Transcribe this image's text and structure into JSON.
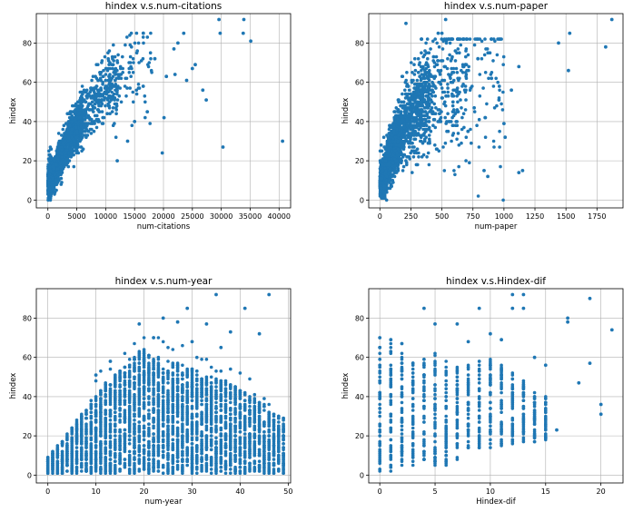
{
  "chart_data": [
    {
      "type": "scatter",
      "title": "hindex v.s.num-citations",
      "xlabel": "num-citations",
      "ylabel": "hindex",
      "xlim": [
        -2000,
        42000
      ],
      "ylim": [
        -4,
        95
      ],
      "xticks": [
        0,
        5000,
        10000,
        15000,
        20000,
        25000,
        30000,
        35000,
        40000
      ],
      "yticks": [
        0,
        20,
        40,
        60,
        80
      ],
      "grid": true,
      "color": "#1f77b4",
      "points": [
        [
          29600,
          92
        ],
        [
          33900,
          92
        ],
        [
          29800,
          85
        ],
        [
          33800,
          85
        ],
        [
          35100,
          81
        ],
        [
          25500,
          69
        ],
        [
          25000,
          67
        ],
        [
          22500,
          80
        ],
        [
          23500,
          85
        ],
        [
          26800,
          56
        ],
        [
          27400,
          51
        ],
        [
          30300,
          27
        ],
        [
          40600,
          30
        ],
        [
          24000,
          61
        ],
        [
          20500,
          63
        ],
        [
          19800,
          24
        ],
        [
          18500,
          72
        ],
        [
          22000,
          64
        ],
        [
          17200,
          45
        ],
        [
          16500,
          58
        ],
        [
          12000,
          20
        ],
        [
          15000,
          40
        ],
        [
          13800,
          30
        ],
        [
          20100,
          42
        ],
        [
          21800,
          77
        ]
      ]
    },
    {
      "type": "scatter",
      "title": "hindex v.s.num-paper",
      "xlabel": "num-paper",
      "ylabel": "hindex",
      "xlim": [
        -90,
        1960
      ],
      "ylim": [
        -4,
        95
      ],
      "xticks": [
        0,
        250,
        500,
        750,
        1000,
        1250,
        1500,
        1750
      ],
      "yticks": [
        0,
        20,
        40,
        60,
        80
      ],
      "grid": true,
      "color": "#1f77b4",
      "points": [
        [
          530,
          92
        ],
        [
          1870,
          92
        ],
        [
          210,
          90
        ],
        [
          500,
          85
        ],
        [
          470,
          85
        ],
        [
          1440,
          80
        ],
        [
          1530,
          85
        ],
        [
          1820,
          78
        ],
        [
          1520,
          66
        ],
        [
          1120,
          68
        ],
        [
          1010,
          32
        ],
        [
          1120,
          14
        ],
        [
          1150,
          15
        ],
        [
          840,
          15
        ],
        [
          870,
          12
        ],
        [
          900,
          62
        ],
        [
          1060,
          56
        ],
        [
          960,
          51
        ],
        [
          790,
          72
        ],
        [
          690,
          69
        ],
        [
          760,
          47
        ],
        [
          620,
          55
        ],
        [
          850,
          42
        ],
        [
          710,
          35
        ],
        [
          1000,
          39
        ]
      ]
    },
    {
      "type": "scatter",
      "title": "hindex v.s.num-year",
      "xlabel": "num-year",
      "ylabel": "hindex",
      "xlim": [
        -2.4,
        50.5
      ],
      "ylim": [
        -4,
        95
      ],
      "xticks": [
        0,
        10,
        20,
        30,
        40,
        50
      ],
      "yticks": [
        0,
        20,
        40,
        60,
        80
      ],
      "grid": true,
      "color": "#1f77b4",
      "points": [
        [
          35,
          92
        ],
        [
          46,
          92
        ],
        [
          29,
          85
        ],
        [
          41,
          85
        ],
        [
          24,
          80
        ],
        [
          19,
          77
        ],
        [
          27,
          78
        ],
        [
          33,
          77
        ],
        [
          38,
          73
        ],
        [
          44,
          72
        ],
        [
          10,
          51
        ],
        [
          13,
          58
        ],
        [
          22,
          70
        ],
        [
          30,
          68
        ],
        [
          36,
          65
        ]
      ]
    },
    {
      "type": "scatter",
      "title": "hindex v.s.Hindex-dif",
      "xlabel": "Hindex-dif",
      "ylabel": "hindex",
      "xlim": [
        -1,
        22
      ],
      "ylim": [
        -4,
        95
      ],
      "xticks": [
        0,
        5,
        10,
        15,
        20
      ],
      "yticks": [
        0,
        20,
        40,
        60,
        80
      ],
      "grid": true,
      "color": "#1f77b4",
      "points": [
        [
          12,
          92
        ],
        [
          13,
          92
        ],
        [
          4,
          85
        ],
        [
          9,
          85
        ],
        [
          12,
          85
        ],
        [
          13,
          85
        ],
        [
          19,
          90
        ],
        [
          17,
          80
        ],
        [
          17,
          78
        ],
        [
          21,
          74
        ],
        [
          18,
          47
        ],
        [
          19,
          57
        ],
        [
          20,
          36
        ],
        [
          20,
          31
        ],
        [
          16,
          23
        ],
        [
          15,
          56
        ],
        [
          14,
          60
        ],
        [
          0,
          70
        ],
        [
          1,
          69
        ],
        [
          2,
          67
        ],
        [
          5,
          77
        ],
        [
          7,
          77
        ],
        [
          8,
          68
        ],
        [
          10,
          72
        ],
        [
          11,
          69
        ]
      ]
    }
  ]
}
